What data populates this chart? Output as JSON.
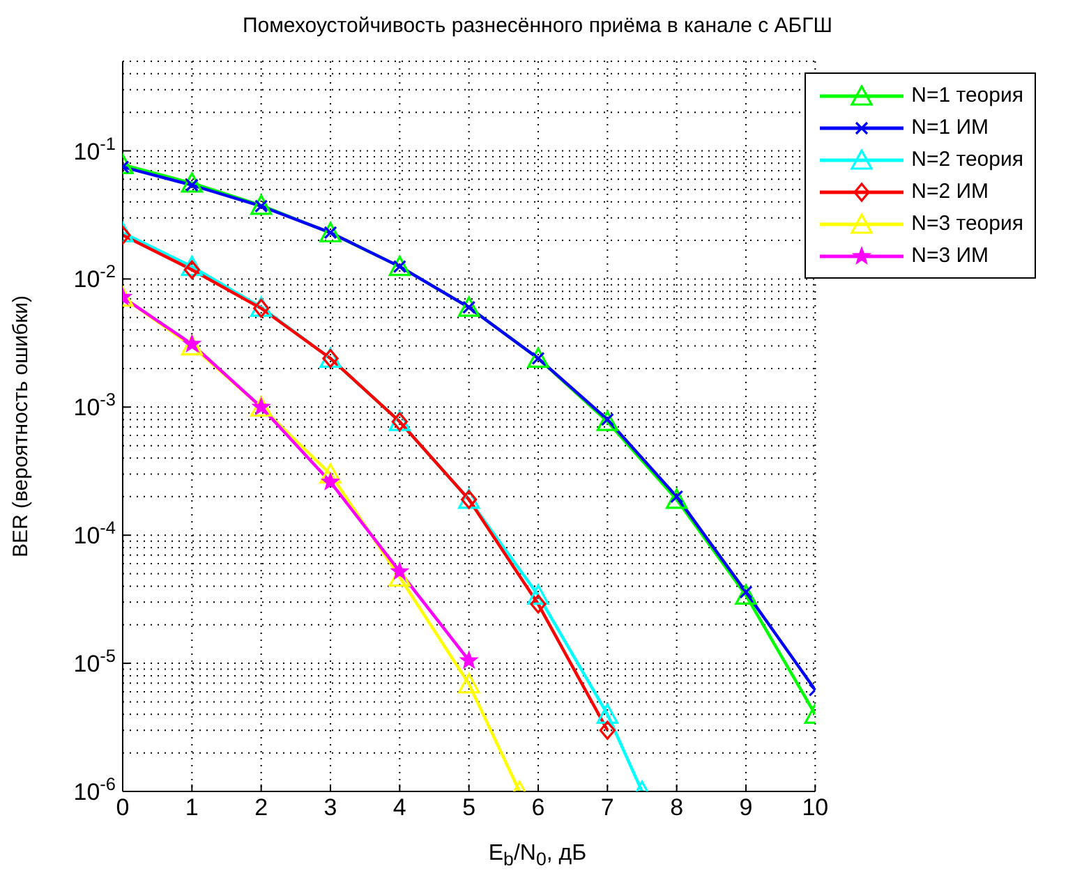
{
  "chart_data": {
    "type": "line",
    "title": "Помехоустойчивость разнесённого приёма в канале с АБГШ",
    "xlabel": "E$_{b}$/N$_{0}$, дБ",
    "ylabel": "BER (вероятность ошибки)",
    "log": "y",
    "grid": true,
    "legend": "top right",
    "xlim": [
      0,
      10
    ],
    "xticks": [
      0,
      1,
      2,
      3,
      4,
      5,
      6,
      7,
      8,
      9,
      10
    ],
    "ylim": [
      1e-06,
      0.5
    ],
    "yticks": [
      {
        "value": 1e-06,
        "label": "10$^{-6}$"
      },
      {
        "value": 1e-05,
        "label": "10$^{-5}$"
      },
      {
        "value": 0.0001,
        "label": "10$^{-4}$"
      },
      {
        "value": 0.001,
        "label": "10$^{-3}$"
      },
      {
        "value": 0.01,
        "label": "10$^{-2}$"
      },
      {
        "value": 0.1,
        "label": "10$^{-1}$"
      }
    ],
    "series": [
      {
        "name": "N=1 теория",
        "color": "#00ff00",
        "marker": "triangle",
        "x": [
          0,
          1,
          2,
          3,
          4,
          5,
          6,
          7,
          8,
          9,
          10
        ],
        "values": [
          0.078,
          0.056,
          0.0375,
          0.0229,
          0.0125,
          0.006,
          0.0024,
          0.00077,
          0.00019,
          3.4e-05,
          4e-06
        ]
      },
      {
        "name": "N=1 ИМ",
        "color": "#0000ff",
        "marker": "cross",
        "x": [
          0,
          1,
          2,
          3,
          4,
          5,
          6,
          7,
          8,
          9,
          10
        ],
        "values": [
          0.075,
          0.054,
          0.037,
          0.023,
          0.0125,
          0.006,
          0.0024,
          0.0008,
          0.0002,
          3.6e-05,
          6.2e-06
        ]
      },
      {
        "name": "N=2 теория",
        "color": "#00ffff",
        "marker": "triangle",
        "x": [
          0,
          1,
          2,
          3,
          4,
          5,
          6,
          7,
          7.5
        ],
        "values": [
          0.0229,
          0.0125,
          0.006,
          0.0024,
          0.00077,
          0.00019,
          3.4e-05,
          4e-06,
          1e-06
        ]
      },
      {
        "name": "N=2 ИМ",
        "color": "#ff0000",
        "marker": "diamond",
        "x": [
          0,
          1,
          2,
          3,
          4,
          5,
          6,
          7
        ],
        "values": [
          0.022,
          0.0118,
          0.0059,
          0.0024,
          0.00077,
          0.00019,
          2.9e-05,
          3e-06
        ]
      },
      {
        "name": "N=3 теория",
        "color": "#ffff00",
        "marker": "triangle",
        "x": [
          0,
          1,
          2,
          3,
          4,
          5,
          5.73
        ],
        "values": [
          0.0072,
          0.003,
          0.001,
          0.0003,
          4.7e-05,
          6.9e-06,
          1e-06
        ]
      },
      {
        "name": "N=3 ИМ",
        "color": "#ff00ff",
        "marker": "star",
        "x": [
          0,
          1,
          2,
          3,
          4,
          5
        ],
        "values": [
          0.0072,
          0.0031,
          0.001,
          0.00026,
          5.2e-05,
          1.05e-05
        ]
      }
    ]
  }
}
